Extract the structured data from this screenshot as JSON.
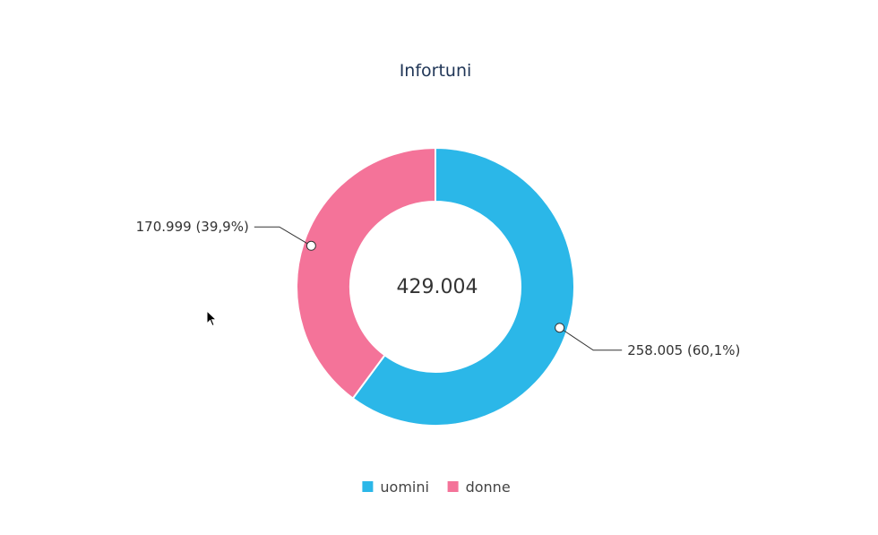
{
  "chart_data": {
    "type": "pie",
    "variant": "donut",
    "title": "Infortuni",
    "center_label": "429.004",
    "total": 429004,
    "slices": [
      {
        "name": "uomini",
        "value": 258005,
        "percent": 60.1,
        "color": "#2bb7e8",
        "label": "258.005 (60,1%)"
      },
      {
        "name": "donne",
        "value": 170999,
        "percent": 39.9,
        "color": "#f47399",
        "label": "170.999 (39,9%)"
      }
    ],
    "legend_position": "bottom-center",
    "start_angle": "top",
    "direction": "clockwise"
  },
  "ui": {
    "cursor_icon": "mouse-pointer-icon"
  }
}
